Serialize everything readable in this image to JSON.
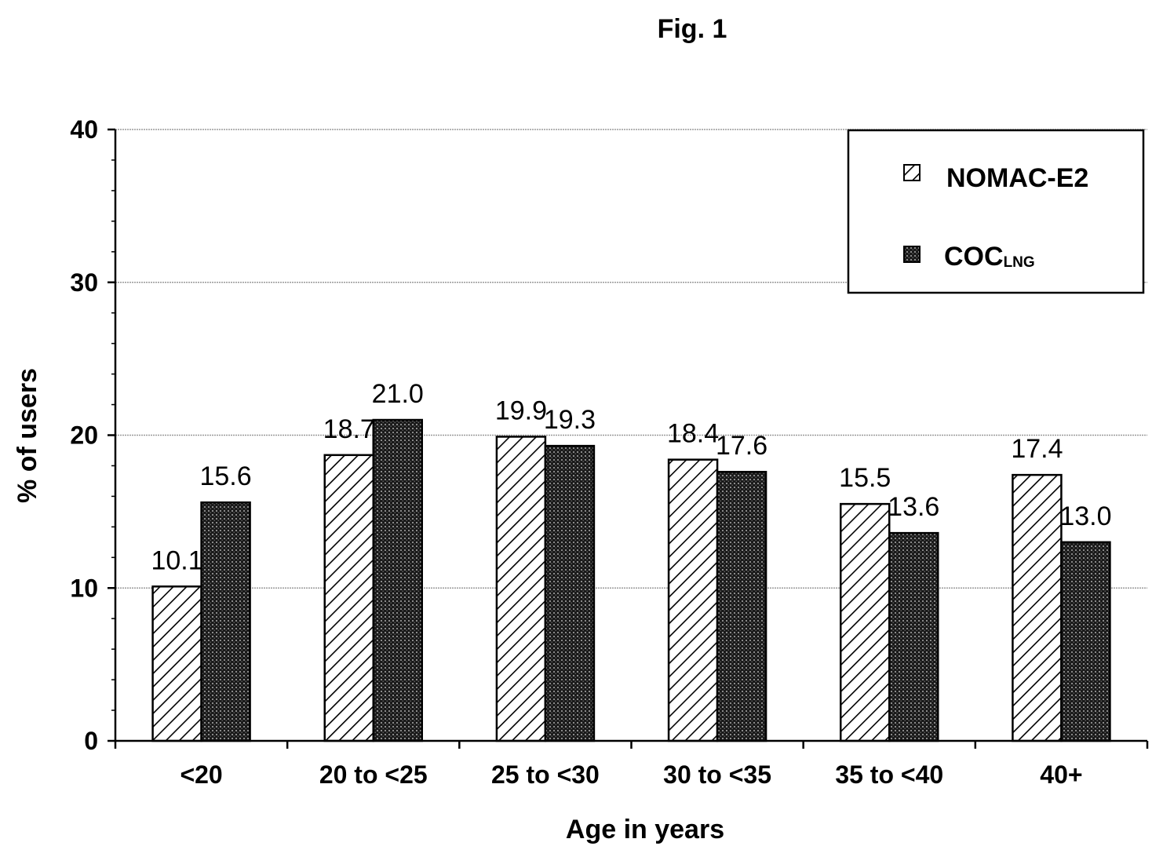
{
  "figure_label": "Fig. 1",
  "chart_data": {
    "type": "bar",
    "title": "",
    "xlabel": "Age in years",
    "ylabel": "% of users",
    "ylim": [
      0,
      40
    ],
    "yticks": [
      0,
      10,
      20,
      30,
      40
    ],
    "grid": true,
    "legend_position": "top-right",
    "categories": [
      "<20",
      "20 to <25",
      "25 to <30",
      "30 to <35",
      "35 to <40",
      "40+"
    ],
    "series": [
      {
        "name": "NOMAC-E2",
        "pattern": "diagonal-hatch",
        "values": [
          10.1,
          18.7,
          19.9,
          18.4,
          15.5,
          17.4
        ]
      },
      {
        "name": "COC",
        "subscript": "LNG",
        "pattern": "crosshatch-dark",
        "values": [
          15.6,
          21.0,
          19.3,
          17.6,
          13.6,
          13.0
        ]
      }
    ],
    "colors": {
      "axis": "#000000",
      "grid": "#9a9a9a",
      "bar_outline": "#000000"
    }
  }
}
